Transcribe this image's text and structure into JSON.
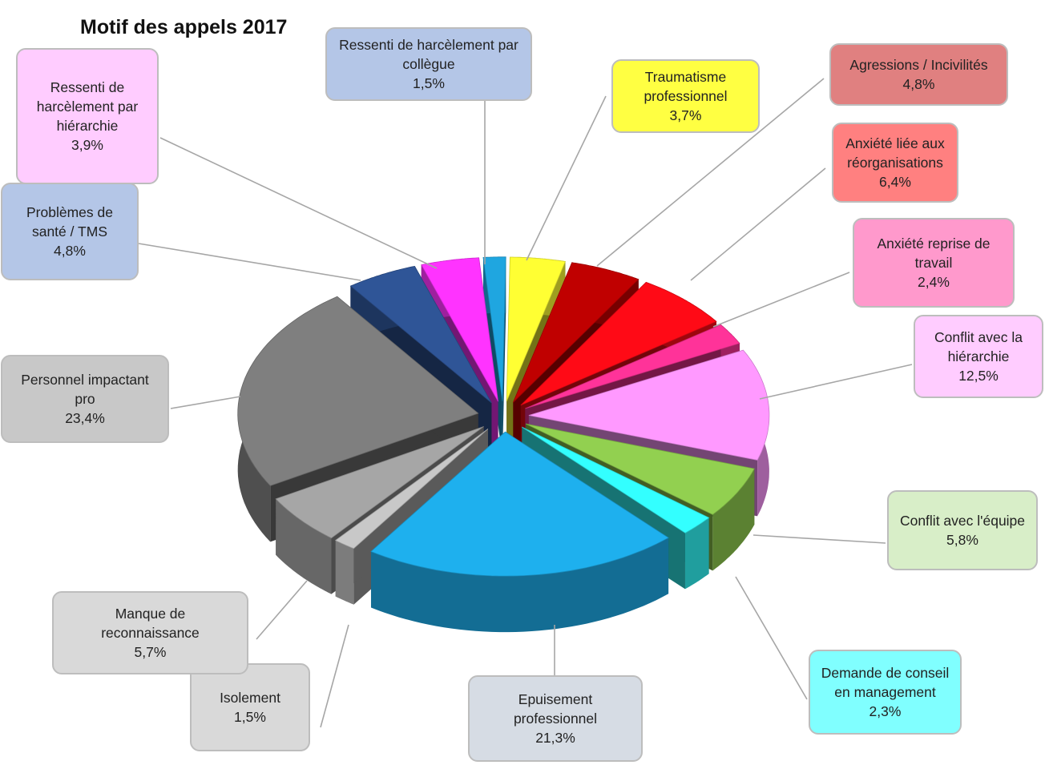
{
  "chart_data": {
    "type": "pie",
    "variant": "3d-exploded",
    "title": "Motif des appels 2017",
    "slices": [
      {
        "label": "Ressenti de harcèlement par collègue",
        "value": 1.5,
        "value_label": "1,5%",
        "color": "#1fa6e0",
        "callout_bg": "#b4c6e7"
      },
      {
        "label": "Traumatisme professionnel",
        "value": 3.7,
        "value_label": "3,7%",
        "color": "#ffff33",
        "callout_bg": "#ffff42"
      },
      {
        "label": "Agressions / Incivilités",
        "value": 4.8,
        "value_label": "4,8%",
        "color": "#c00000",
        "callout_bg": "#e08080"
      },
      {
        "label": "Anxiété liée aux réorganisations",
        "value": 6.4,
        "value_label": "6,4%",
        "color": "#ff0a16",
        "callout_bg": "#ff8080"
      },
      {
        "label": "Anxiété reprise de travail",
        "value": 2.4,
        "value_label": "2,4%",
        "color": "#ff3399",
        "callout_bg": "#ff99cc"
      },
      {
        "label": "Conflit avec la hiérarchie",
        "value": 12.5,
        "value_label": "12,5%",
        "color": "#ff99ff",
        "callout_bg": "#ffccff"
      },
      {
        "label": "Conflit avec l'équipe",
        "value": 5.8,
        "value_label": "5,8%",
        "color": "#92d050",
        "callout_bg": "#d8eec8"
      },
      {
        "label": "Demande de conseil en management",
        "value": 2.3,
        "value_label": "2,3%",
        "color": "#33ffff",
        "callout_bg": "#80ffff"
      },
      {
        "label": "Epuisement professionnel",
        "value": 21.3,
        "value_label": "21,3%",
        "color": "#1eb0ee",
        "callout_bg": "#d6dce4"
      },
      {
        "label": "Isolement",
        "value": 1.5,
        "value_label": "1,5%",
        "color": "#c8c8c8",
        "callout_bg": "#d9d9d9"
      },
      {
        "label": "Manque de reconnaissance",
        "value": 5.7,
        "value_label": "5,7%",
        "color": "#a6a6a6",
        "callout_bg": "#d9d9d9"
      },
      {
        "label": "Personnel impactant pro",
        "value": 23.4,
        "value_label": "23,4%",
        "color": "#7f7f7f",
        "callout_bg": "#c8c8c8"
      },
      {
        "label": "Problèmes de santé / TMS",
        "value": 4.8,
        "value_label": "4,8%",
        "color": "#2f5597",
        "callout_bg": "#b4c6e7"
      },
      {
        "label": "Ressenti de harcèlement par hiérarchie",
        "value": 3.9,
        "value_label": "3,9%",
        "color": "#ff33ff",
        "callout_bg": "#ffccff"
      }
    ]
  },
  "callout_text": [
    "Ressenti de harcèlement par\ncollègue",
    "Traumatisme\nprofessionnel",
    "Agressions / Incivilités",
    "Anxiété liée aux\nréorganisations",
    "Anxiété reprise de\ntravail",
    "Conflit avec la\nhiérarchie",
    "Conflit avec l'équipe",
    "Demande de conseil\nen management",
    "Epuisement\nprofessionnel",
    "Isolement",
    "Manque de\nreconnaissance",
    "Personnel impactant\npro",
    "Problèmes de\nsanté / TMS",
    "Ressenti de\nharcèlement par\nhiérarchie"
  ]
}
